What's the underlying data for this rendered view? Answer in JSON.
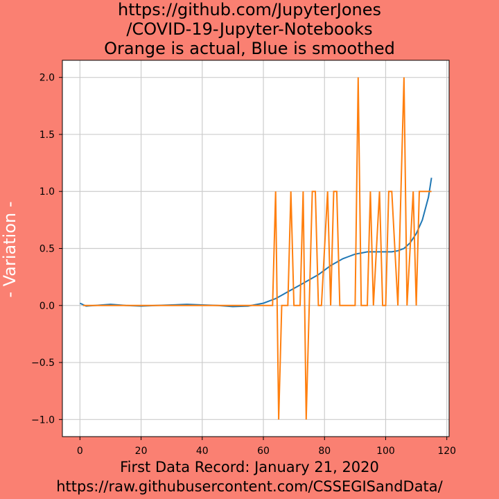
{
  "theme": {
    "background": "#fa8072",
    "plot_bg": "#ffffff",
    "smoothed_color": "#1f77b4",
    "actual_color": "#ff7f0e",
    "grid_color": "#cccccc",
    "ylabel_color": "#ffffff"
  },
  "chart_data": {
    "type": "line",
    "title_lines": [
      "https://github.com/JupyterJones",
      "/COVID-19-Jupyter-Notebooks",
      "Orange is actual, Blue is smoothed"
    ],
    "ylabel": "- Variation -",
    "xlabel_lines": [
      "First Data Record: January 21, 2020",
      "https://raw.githubusercontent.com/CSSEGISandData/"
    ],
    "xlim": [
      -5.75,
      120.75
    ],
    "ylim": [
      -1.15,
      2.15
    ],
    "grid": true,
    "x_ticks": [
      0,
      20,
      40,
      60,
      80,
      100,
      120
    ],
    "x_tick_labels": [
      "0",
      "20",
      "40",
      "60",
      "80",
      "100",
      "120"
    ],
    "y_ticks": [
      -1.0,
      -0.5,
      0.0,
      0.5,
      1.0,
      1.5,
      2.0
    ],
    "y_tick_labels": [
      "−1.0",
      "−0.5",
      "0.0",
      "0.5",
      "1.0",
      "1.5",
      "2.0"
    ],
    "series": [
      {
        "color": "#1f77b4",
        "x": [
          0,
          2,
          5,
          10,
          15,
          20,
          25,
          30,
          35,
          40,
          45,
          50,
          55,
          58,
          60,
          62,
          64,
          66,
          68,
          70,
          72,
          74,
          76,
          78,
          80,
          82,
          84,
          86,
          88,
          90,
          92,
          94,
          96,
          98,
          100,
          102,
          104,
          106,
          108,
          110,
          112,
          114,
          115
        ],
        "y": [
          0.02,
          -0.005,
          0.0,
          0.01,
          0.0,
          -0.005,
          0.0,
          0.005,
          0.01,
          0.005,
          0.0,
          -0.01,
          -0.005,
          0.01,
          0.02,
          0.04,
          0.06,
          0.09,
          0.12,
          0.15,
          0.18,
          0.21,
          0.24,
          0.27,
          0.31,
          0.35,
          0.38,
          0.41,
          0.43,
          0.45,
          0.46,
          0.47,
          0.47,
          0.47,
          0.47,
          0.47,
          0.48,
          0.5,
          0.55,
          0.63,
          0.75,
          0.95,
          1.12
        ]
      },
      {
        "color": "#ff7f0e",
        "x": [
          1,
          63,
          64,
          65,
          66,
          68,
          69,
          70,
          72,
          73,
          74,
          75,
          76,
          77,
          78,
          79,
          81,
          82,
          83,
          84,
          85,
          86,
          88,
          90,
          91,
          92,
          94,
          95,
          96,
          98,
          99,
          100,
          101,
          102,
          104,
          105,
          106,
          107,
          109,
          110,
          111,
          114,
          115
        ],
        "y": [
          0,
          0,
          1,
          -1,
          0,
          0,
          1,
          0,
          0,
          1,
          -1,
          0,
          1,
          1,
          0,
          0,
          1,
          0,
          1,
          1,
          0,
          0,
          0,
          0,
          2,
          0,
          0,
          1,
          0,
          1,
          0,
          0,
          1,
          1,
          0,
          1,
          2,
          0,
          1,
          0,
          1,
          1,
          1
        ]
      }
    ]
  }
}
